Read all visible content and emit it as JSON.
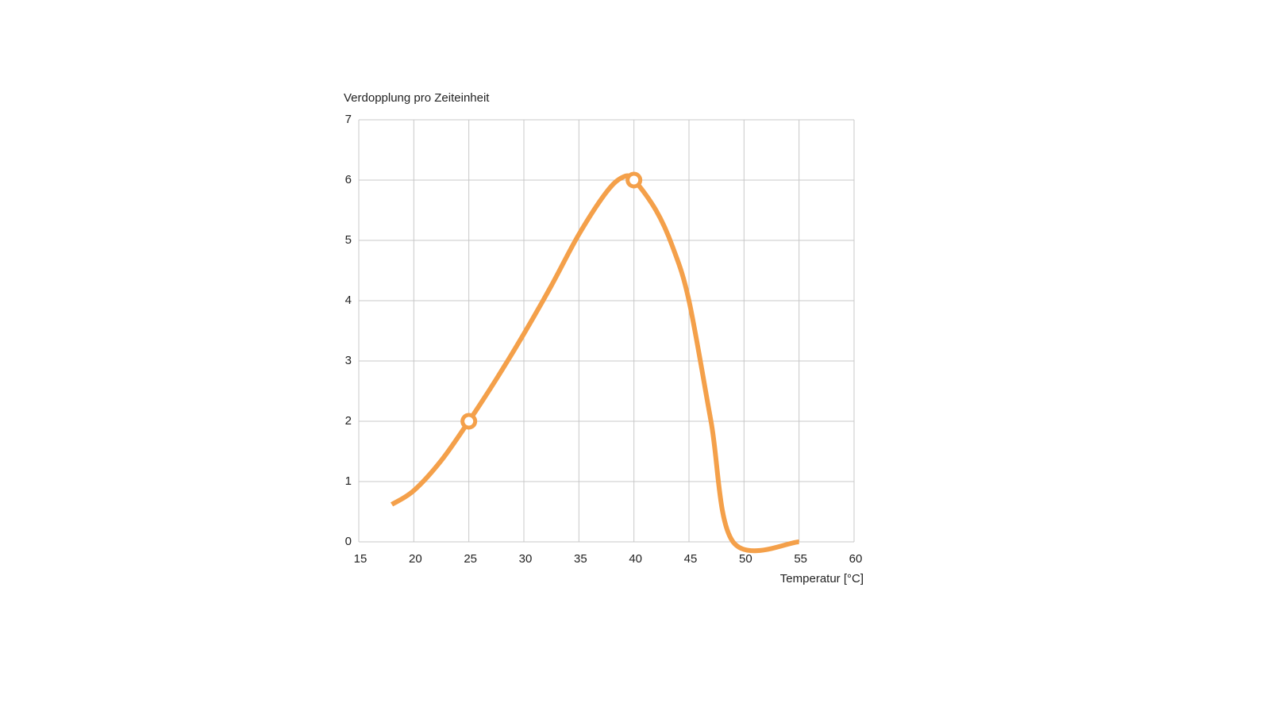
{
  "chart_data": {
    "type": "line",
    "y_axis_label": "Verdopplung pro Zeiteinheit",
    "x_axis_label": "Temperatur [°C]",
    "x": [
      18,
      20,
      22.5,
      25,
      27.5,
      30,
      32.5,
      35,
      37.5,
      39,
      40,
      42,
      43.5,
      45,
      47,
      49,
      55
    ],
    "values": [
      0.62,
      0.85,
      1.35,
      2,
      2.7,
      3.45,
      4.25,
      5.1,
      5.8,
      6.05,
      6,
      5.5,
      4.9,
      4.0,
      2.0,
      0,
      0
    ],
    "color": "#f4a04a",
    "markers": {
      "x": [
        25,
        40
      ],
      "values": [
        2,
        6
      ]
    },
    "xlim": [
      15,
      60
    ],
    "xticks": [
      15,
      20,
      25,
      30,
      35,
      40,
      45,
      50,
      55,
      60
    ],
    "ylim": [
      0,
      7
    ],
    "yticks": [
      0,
      1,
      2,
      3,
      4,
      5,
      6,
      7
    ],
    "grid": true
  }
}
